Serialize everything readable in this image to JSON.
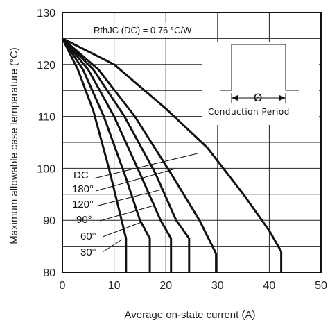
{
  "chart_data": {
    "type": "line",
    "xlabel": "Average on-state current (A)",
    "ylabel": "Maximum allowable case temperature (°C)",
    "xlim": [
      0,
      50
    ],
    "ylim": [
      80,
      130
    ],
    "x_ticks": [
      "0",
      "10",
      "20",
      "30",
      "40",
      "50"
    ],
    "y_ticks": [
      "80",
      "90",
      "100",
      "110",
      "120",
      "130"
    ],
    "grid": true,
    "annotation": "RthJC (DC) = 0.76 °C/W",
    "inset": {
      "label": "Conduction Period",
      "symbol": "Ø"
    },
    "series": [
      {
        "name": "30°",
        "points": [
          [
            0,
            125
          ],
          [
            3,
            119
          ],
          [
            6,
            111
          ],
          [
            9,
            100
          ],
          [
            11.2,
            91
          ],
          [
            12.3,
            86.5
          ],
          [
            12.3,
            80
          ]
        ]
      },
      {
        "name": "60°",
        "points": [
          [
            0,
            125
          ],
          [
            4,
            119
          ],
          [
            8,
            110
          ],
          [
            12,
            99
          ],
          [
            15,
            90
          ],
          [
            16.9,
            86.5
          ],
          [
            16.9,
            80
          ]
        ]
      },
      {
        "name": "90°",
        "points": [
          [
            0,
            125
          ],
          [
            5,
            119
          ],
          [
            10,
            110
          ],
          [
            15,
            99
          ],
          [
            19,
            90
          ],
          [
            21,
            86.5
          ],
          [
            21,
            80
          ]
        ]
      },
      {
        "name": "120°",
        "points": [
          [
            0,
            125
          ],
          [
            6,
            119
          ],
          [
            12,
            110
          ],
          [
            18,
            99
          ],
          [
            22,
            90
          ],
          [
            24.5,
            86.5
          ],
          [
            24.5,
            80
          ]
        ]
      },
      {
        "name": "180°",
        "points": [
          [
            0,
            125
          ],
          [
            7,
            119
          ],
          [
            14,
            110
          ],
          [
            21,
            99
          ],
          [
            26.5,
            90
          ],
          [
            29.5,
            84
          ],
          [
            29.7,
            83.5
          ],
          [
            29.7,
            80
          ]
        ]
      },
      {
        "name": "DC",
        "points": [
          [
            0,
            125
          ],
          [
            10,
            120
          ],
          [
            20,
            111.5
          ],
          [
            28,
            104
          ],
          [
            35,
            95
          ],
          [
            40,
            88
          ],
          [
            42.3,
            84
          ],
          [
            42.3,
            80
          ]
        ]
      }
    ]
  }
}
